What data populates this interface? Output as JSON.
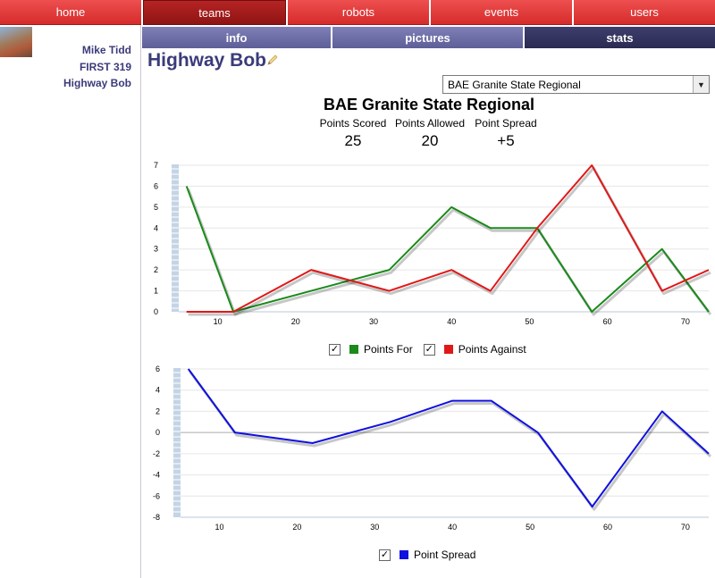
{
  "nav": {
    "tabs": [
      {
        "label": "home"
      },
      {
        "label": "teams"
      },
      {
        "label": "robots"
      },
      {
        "label": "events"
      },
      {
        "label": "users"
      }
    ]
  },
  "subnav": {
    "tabs": [
      {
        "label": "info"
      },
      {
        "label": "pictures"
      },
      {
        "label": "stats"
      }
    ]
  },
  "sidebar": {
    "user_name": "Mike Tidd",
    "team_number": "FIRST 319",
    "team_name": "Highway Bob"
  },
  "page": {
    "title": "Highway Bob",
    "edit_icon": "pencil-icon"
  },
  "event_select": {
    "selected": "BAE Granite State Regional"
  },
  "event_title": "BAE Granite State Regional",
  "stats": [
    {
      "label": "Points Scored",
      "value": "25"
    },
    {
      "label": "Points Allowed",
      "value": "20"
    },
    {
      "label": "Point Spread",
      "value": "+5"
    }
  ],
  "colors": {
    "nav_red": "#d62b2b",
    "subnav_purple": "#5e5e98",
    "points_for": "#1a8a1a",
    "points_against": "#e01818",
    "point_spread": "#1010e0"
  },
  "legends": {
    "points_for": "Points For",
    "points_against": "Points Against",
    "point_spread": "Point Spread",
    "checked": "✓"
  },
  "chart_data": [
    {
      "type": "line",
      "xlim": [
        5,
        73
      ],
      "ylim": [
        0,
        7
      ],
      "x_ticks": [
        10,
        20,
        30,
        40,
        50,
        60,
        70
      ],
      "y_ticks": [
        0,
        1,
        2,
        3,
        4,
        5,
        6,
        7
      ],
      "grid": true,
      "legend": "bottom",
      "series": [
        {
          "name": "Points For",
          "x": [
            6,
            12,
            22,
            32,
            40,
            45,
            51,
            58,
            67,
            73
          ],
          "values": [
            6,
            0,
            1,
            2,
            5,
            4,
            4,
            0,
            3,
            0
          ]
        },
        {
          "name": "Points Against",
          "x": [
            6,
            12,
            22,
            32,
            40,
            45,
            51,
            58,
            67,
            73
          ],
          "values": [
            0,
            0,
            2,
            1,
            2,
            1,
            4,
            7,
            1,
            2
          ]
        }
      ]
    },
    {
      "type": "line",
      "xlim": [
        5,
        73
      ],
      "ylim": [
        -8,
        6
      ],
      "x_ticks": [
        10,
        20,
        30,
        40,
        50,
        60,
        70
      ],
      "y_ticks": [
        -8,
        -6,
        -4,
        -2,
        0,
        2,
        4,
        6
      ],
      "grid": true,
      "legend": "bottom",
      "series": [
        {
          "name": "Point Spread",
          "x": [
            6,
            12,
            22,
            32,
            40,
            45,
            51,
            58,
            67,
            73
          ],
          "values": [
            6,
            0,
            -1,
            1,
            3,
            3,
            0,
            -7,
            2,
            -2
          ]
        }
      ]
    }
  ]
}
